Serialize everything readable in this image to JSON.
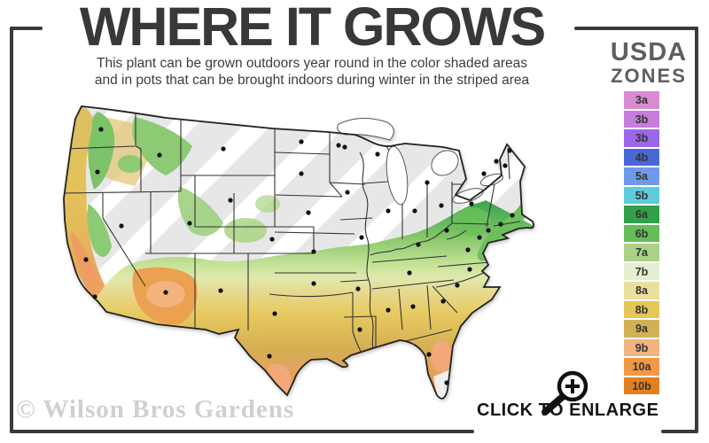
{
  "header": {
    "title": "WHERE IT GROWS",
    "subtitle_line1": "This plant can be grown outdoors year round in the color shaded areas",
    "subtitle_line2": "and in pots that can be brought indoors during winter in the striped area"
  },
  "legend": {
    "title_line1": "USDA",
    "title_line2": "ZONES",
    "zones": [
      {
        "label": "3a",
        "color": "#d88bd1"
      },
      {
        "label": "3b",
        "color": "#c77ddb"
      },
      {
        "label": "3b",
        "color": "#9a68e8"
      },
      {
        "label": "4b",
        "color": "#4a67d6"
      },
      {
        "label": "5a",
        "color": "#6f9ae9"
      },
      {
        "label": "5b",
        "color": "#5ecddb"
      },
      {
        "label": "6a",
        "color": "#31a049"
      },
      {
        "label": "6b",
        "color": "#64bd55"
      },
      {
        "label": "7a",
        "color": "#a9d284"
      },
      {
        "label": "7b",
        "color": "#e3efcf"
      },
      {
        "label": "8a",
        "color": "#ebdf9e"
      },
      {
        "label": "8b",
        "color": "#e6c654"
      },
      {
        "label": "9a",
        "color": "#d2b154"
      },
      {
        "label": "9b",
        "color": "#f0b57e"
      },
      {
        "label": "10a",
        "color": "#f09844"
      },
      {
        "label": "10b",
        "color": "#e2801f"
      }
    ]
  },
  "map": {
    "region": "Continental United States zone map",
    "striped_area_color": "#e7e7e7",
    "stripe_color": "#ffffff"
  },
  "footer": {
    "watermark": "© Wilson Bros Gardens",
    "enlarge_label": "CLICK TO ENLARGE",
    "magnifier_icon": "magnifying-glass-plus"
  },
  "colors": {
    "frame": "#3a3a3a",
    "title_text": "#383838",
    "legend_title_text": "#5f5f5f",
    "watermark_text": "#d0d0d0"
  }
}
